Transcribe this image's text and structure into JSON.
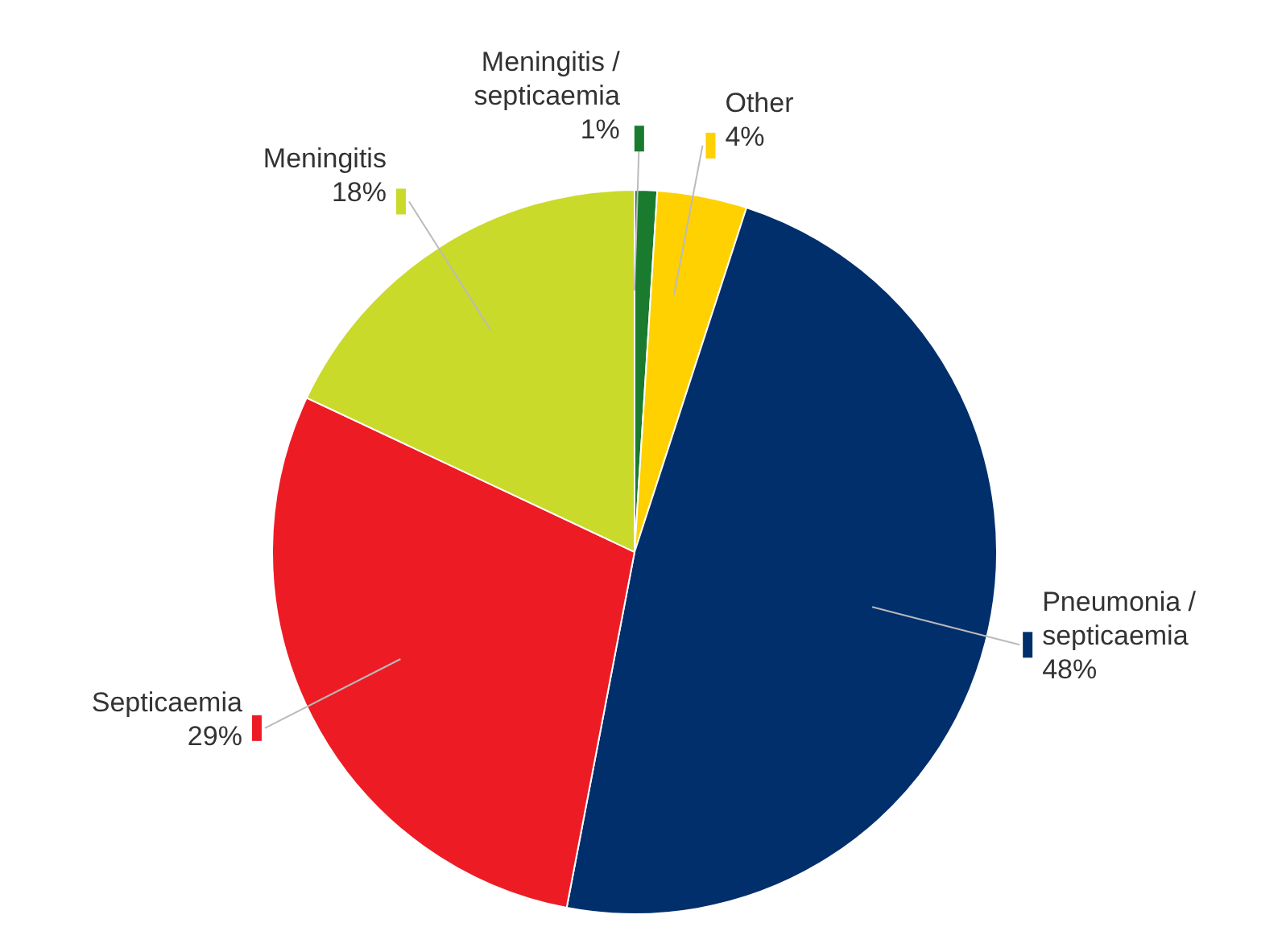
{
  "chart_data": {
    "type": "pie",
    "categories": [
      "Meningitis / septicaemia",
      "Other",
      "Pneumonia / septicaemia",
      "Septicaemia",
      "Meningitis"
    ],
    "values": [
      1,
      4,
      48,
      29,
      18
    ],
    "value_labels": [
      "1%",
      "4%",
      "48%",
      "29%",
      "18%"
    ],
    "colors": [
      "#1a7a2e",
      "#ffd100",
      "#002f6c",
      "#ed1c24",
      "#c9da2a"
    ]
  }
}
